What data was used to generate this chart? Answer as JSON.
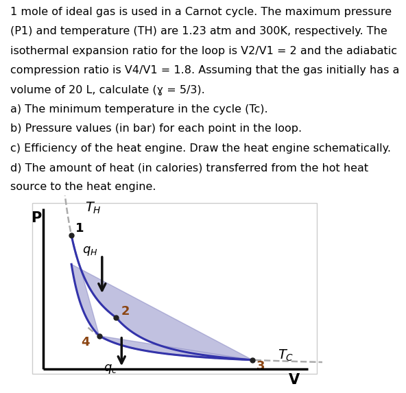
{
  "text_lines": [
    "1 mole of ideal gas is used in a Carnot cycle. The maximum pressure",
    "(P1) and temperature (TH) are 1.23 atm and 300K, respectively. The",
    "isothermal expansion ratio for the loop is V2/V1 = 2 and the adiabatic",
    "compression ratio is V4/V1 = 1.8. Assuming that the gas initially has a",
    "volume of 20 L, calculate (ɣ = 5/3).",
    "a) The minimum temperature in the cycle (Tc).",
    "b) Pressure values (in bar) for each point in the loop.",
    "c) Efficiency of the heat engine. Draw the heat engine schematically.",
    "d) The amount of heat (in calories) transferred from the hot heat",
    "source to the heat engine."
  ],
  "fill_color": "#7777bb",
  "fill_alpha": 0.45,
  "curve_color": "#3333aa",
  "dashed_color": "#aaaaaa",
  "arrow_color": "#111111",
  "point_color": "#222222",
  "label_color_dark": "#000000",
  "label_color_brown": "#8B4513",
  "text_fontsize": 11.5,
  "background": "#ffffff",
  "V1": 1.0,
  "V2": 2.6,
  "V3": 7.5,
  "V4": 2.0,
  "P1": 5.0,
  "gamma": 1.6667
}
